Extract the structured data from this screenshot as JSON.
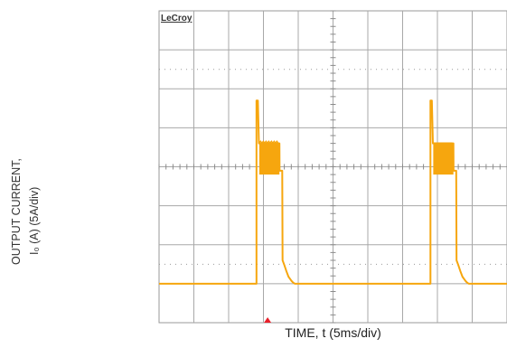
{
  "chart_data": {
    "type": "line",
    "brand": "LeCroy",
    "ylabel_line1": "OUTPUT CURRENT,",
    "ylabel_line2": "I₀ (A) (5A/div)",
    "xlabel": "TIME, t (5ms/div)",
    "x_units": "ms",
    "y_units": "A",
    "x_divisions": 10,
    "y_divisions": 8,
    "xlim": [
      0,
      50
    ],
    "ylim": [
      -20,
      20
    ],
    "grid": true,
    "trace_color": "#f6a60e",
    "trigger_marker_color": "#e8202a",
    "trigger_time": 15.6,
    "series": [
      {
        "x": [
          0,
          14.0,
          14.0,
          14.2,
          14.35,
          14.4,
          17.3,
          17.32,
          17.7,
          17.75,
          18.0,
          18.3,
          18.6,
          19.0,
          19.2,
          19.5,
          20.0,
          30.0,
          39.0,
          39.0,
          39.2,
          39.35,
          39.4,
          42.3,
          42.32,
          42.7,
          42.75,
          43.0,
          43.3,
          43.6,
          44.0,
          44.2,
          44.5,
          45.0,
          50.0
        ],
        "y": [
          -15.0,
          -15.0,
          8.5,
          8.5,
          3.0,
          3.0,
          3.0,
          -0.5,
          -0.5,
          -12.0,
          -12.6,
          -13.4,
          -14.1,
          -14.6,
          -14.8,
          -15.0,
          -15.0,
          -15.0,
          -15.0,
          8.5,
          8.5,
          3.0,
          3.0,
          3.0,
          -0.5,
          -0.5,
          -12.0,
          -12.6,
          -13.4,
          -14.1,
          -14.6,
          -14.8,
          -15.0,
          -15.0,
          -15.0
        ]
      }
    ],
    "bursts": [
      {
        "x_start": 14.4,
        "x_end": 17.3,
        "y_low": -1.0,
        "y_high": 3.0
      },
      {
        "x_start": 39.4,
        "x_end": 42.3,
        "y_low": -1.0,
        "y_high": 3.0
      }
    ]
  }
}
